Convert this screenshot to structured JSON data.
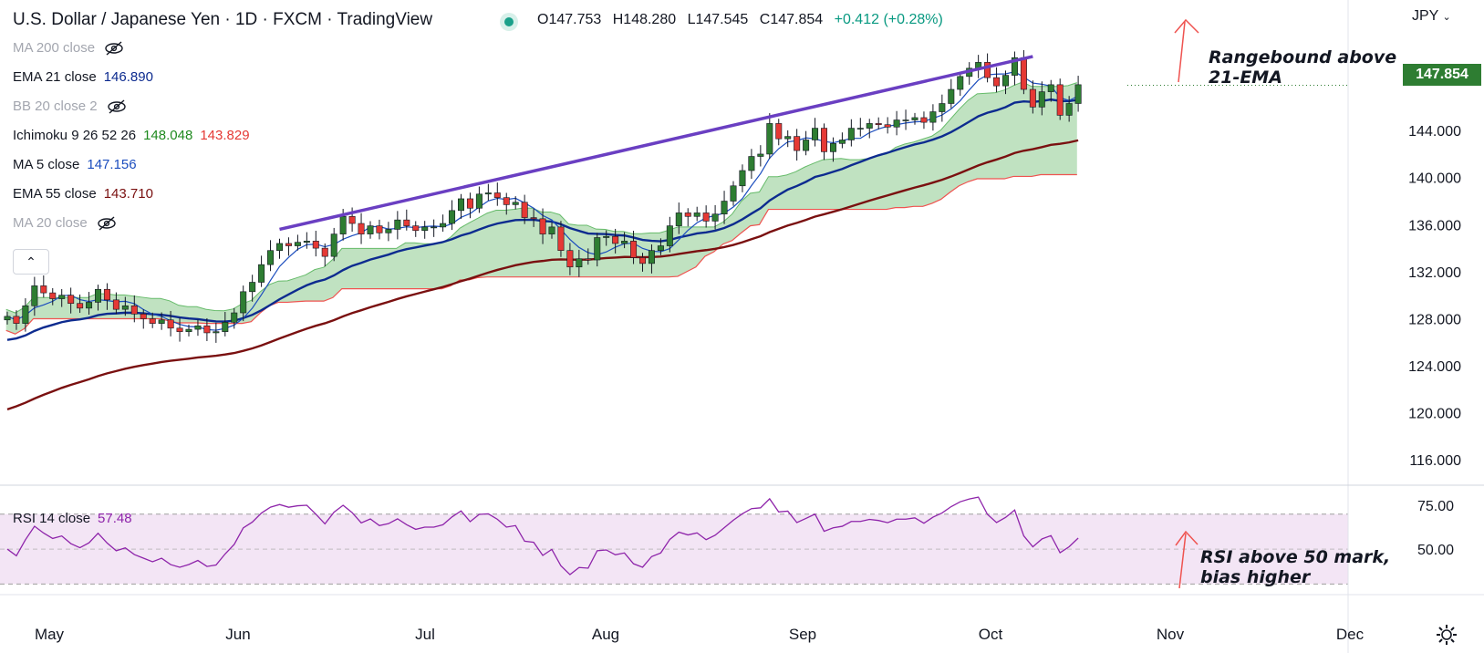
{
  "header": {
    "title": "U.S. Dollar / Japanese Yen · 1D · FXCM · TradingView",
    "open": "O147.753",
    "high": "H148.280",
    "low": "L147.545",
    "close": "C147.854",
    "change": "+0.412 (+0.28%)"
  },
  "currency": "JPY",
  "last_price": "147.854",
  "indicators": [
    {
      "label": "MA 200 close",
      "value": "",
      "hidden": true
    },
    {
      "label": "EMA 21 close",
      "value": "146.890",
      "color": "#0d2b8f"
    },
    {
      "label": "BB 20 close 2",
      "value": "",
      "hidden": true
    },
    {
      "label": "Ichimoku 9 26 52 26",
      "value": "148.048",
      "value2": "143.829",
      "color": "#1f8a1f",
      "color2": "#e53935"
    },
    {
      "label": "MA 5 close",
      "value": "147.156",
      "color": "#1b4dbe"
    },
    {
      "label": "EMA 55 close",
      "value": "143.710",
      "color": "#7a1010"
    },
    {
      "label": "MA 20 close",
      "value": "",
      "hidden": true
    }
  ],
  "rsi": {
    "label": "RSI 14 close",
    "value": "57.48"
  },
  "annotations": {
    "price_note": "Rangebound above\n21-EMA",
    "rsi_note": "RSI above 50 mark,\nbias higher"
  },
  "icons": [
    "eye-off-icon",
    "chevron-up-icon",
    "chevron-down-icon",
    "gear-icon",
    "arrow-up-icon"
  ],
  "colors": {
    "up": "#2e7d32",
    "down": "#e53935",
    "ema21": "#0d2b8f",
    "ma5": "#1b4dbe",
    "ema55": "#7a1010",
    "trendline": "#6a3fc2",
    "cloud": "#a5d6a7",
    "rsi_line": "#8e24aa",
    "rsi_band": "#f3e5f5"
  },
  "chart_data": {
    "type": "candlestick",
    "symbol": "USDJPY",
    "timeframe": "1D",
    "xlabels": [
      "May",
      "Jun",
      "Jul",
      "Aug",
      "Sep",
      "Oct",
      "Nov",
      "Dec"
    ],
    "ylabels": [
      "116.000",
      "120.000",
      "124.000",
      "128.000",
      "132.000",
      "136.000",
      "140.000",
      "144.000"
    ],
    "ylim": [
      114,
      152
    ],
    "rsi_ylabels": [
      "50.00",
      "75.00"
    ],
    "rsi_ylim": [
      25,
      85
    ],
    "close": [
      128.2,
      127.6,
      129.1,
      130.8,
      130.2,
      129.7,
      130.0,
      129.3,
      128.9,
      129.4,
      130.5,
      129.6,
      128.8,
      129.1,
      128.4,
      128.0,
      127.6,
      127.9,
      127.2,
      126.9,
      127.1,
      127.4,
      126.8,
      126.9,
      127.7,
      128.5,
      130.3,
      131.1,
      132.6,
      133.8,
      134.4,
      134.2,
      134.5,
      134.6,
      134.0,
      133.3,
      135.2,
      136.7,
      136.1,
      135.2,
      135.9,
      135.3,
      135.6,
      136.4,
      135.9,
      135.5,
      135.8,
      135.8,
      136.1,
      137.2,
      138.2,
      137.4,
      138.6,
      138.7,
      138.3,
      137.7,
      137.9,
      136.6,
      136.5,
      135.2,
      135.8,
      133.8,
      132.4,
      133.1,
      133.0,
      134.9,
      135.0,
      134.4,
      134.6,
      133.2,
      132.7,
      133.8,
      134.2,
      135.9,
      137.0,
      136.7,
      137.0,
      136.3,
      136.9,
      138.0,
      139.3,
      140.6,
      141.8,
      142.0,
      144.6,
      143.3,
      143.5,
      142.3,
      143.2,
      144.2,
      142.2,
      142.9,
      143.2,
      144.2,
      144.2,
      144.6,
      144.5,
      144.3,
      144.9,
      144.9,
      145.1,
      144.7,
      145.6,
      146.3,
      147.5,
      148.6,
      149.3,
      149.8,
      148.5,
      147.8,
      148.7,
      150.2,
      147.5,
      146.0,
      147.3,
      147.9,
      145.3,
      146.3,
      147.9
    ],
    "ema21_last": 146.89,
    "ma5_last": 147.156,
    "ema55_last": 143.71,
    "ichimoku_span_a_last": 148.048,
    "ichimoku_span_b_last": 143.829,
    "rsi_last": 57.48
  }
}
